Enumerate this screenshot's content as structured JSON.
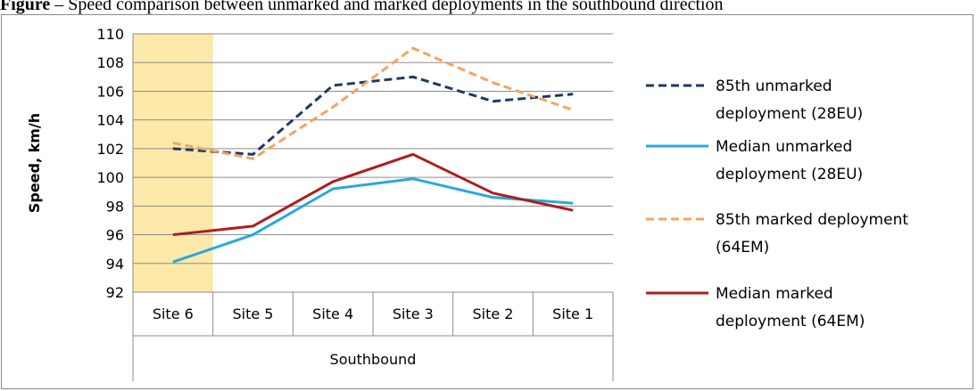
{
  "caption": {
    "bold": "Figure",
    "text": " – Speed comparison between unmarked and marked deployments in the southbound direction"
  },
  "chart_data": {
    "type": "line",
    "title": "",
    "ylabel": "Speed, km/h",
    "xlabel": "",
    "group_label": "Southbound",
    "categories": [
      "Site 6",
      "Site 5",
      "Site 4",
      "Site 3",
      "Site 2",
      "Site 1"
    ],
    "ylim": [
      92,
      110
    ],
    "yticks": [
      92,
      94,
      96,
      98,
      100,
      102,
      104,
      106,
      108,
      110
    ],
    "grid": true,
    "legend_position": "right",
    "highlight_category": "Site 6",
    "highlight_color": "#fde9a9",
    "series": [
      {
        "name": "85th unmarked deployment (28EU)",
        "legend_lines": [
          "85th unmarked",
          "deployment (28EU)"
        ],
        "values": [
          102.0,
          101.6,
          106.4,
          107.0,
          105.3,
          105.8
        ],
        "color": "#1f3864",
        "dashed": true
      },
      {
        "name": "Median unmarked deployment (28EU)",
        "legend_lines": [
          "Median unmarked",
          "deployment (28EU)"
        ],
        "values": [
          94.1,
          96.0,
          99.2,
          99.9,
          98.6,
          98.2
        ],
        "color": "#29a8e0",
        "dashed": false
      },
      {
        "name": "85th marked deployment (64EM)",
        "legend_lines": [
          "85th marked deployment",
          "(64EM)"
        ],
        "values": [
          102.4,
          101.3,
          104.9,
          109.0,
          106.6,
          104.7
        ],
        "color": "#f4a460",
        "dashed": true
      },
      {
        "name": "Median marked deployment (64EM)",
        "legend_lines": [
          "Median marked",
          "deployment (64EM)"
        ],
        "values": [
          96.0,
          96.6,
          99.7,
          101.6,
          98.9,
          97.7
        ],
        "color": "#b01c1c",
        "dashed": false
      }
    ]
  }
}
